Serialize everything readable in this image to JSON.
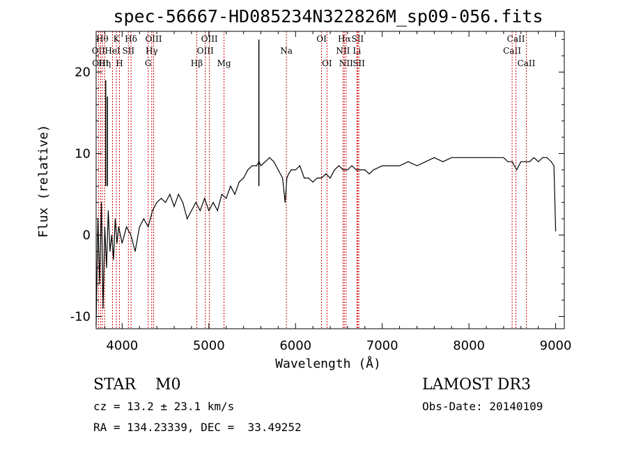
{
  "chart_data": {
    "type": "line",
    "title": "spec-56667-HD085234N322826M_sp09-056.fits",
    "xlabel": "Wavelength (Å)",
    "ylabel": "Flux (relative)",
    "xlim": [
      3700,
      9100
    ],
    "ylim": [
      -11.5,
      25
    ],
    "xticks": [
      4000,
      5000,
      6000,
      7000,
      8000,
      9000
    ],
    "yticks": [
      -10,
      0,
      10,
      20
    ],
    "grid": false,
    "series": [
      {
        "x": [
          3700,
          3720,
          3740,
          3760,
          3780,
          3800,
          3820,
          3840,
          3860,
          3880,
          3900,
          3920,
          3940,
          3960,
          3980,
          4000,
          4050,
          4100,
          4150,
          4200,
          4250,
          4300,
          4350,
          4400,
          4450,
          4500,
          4550,
          4600,
          4650,
          4700,
          4750,
          4800,
          4850,
          4900,
          4950,
          5000,
          5050,
          5100,
          5150,
          5200,
          5250,
          5300,
          5350,
          5400,
          5450,
          5500,
          5550,
          5580,
          5600,
          5650,
          5700,
          5750,
          5800,
          5850,
          5880,
          5900,
          5920,
          5950,
          6000,
          6050,
          6100,
          6150,
          6200,
          6250,
          6300,
          6350,
          6400,
          6450,
          6500,
          6550,
          6600,
          6650,
          6700,
          6750,
          6800,
          6850,
          6900,
          7000,
          7100,
          7200,
          7300,
          7400,
          7500,
          7600,
          7700,
          7800,
          7900,
          8000,
          8100,
          8200,
          8300,
          8400,
          8450,
          8500,
          8550,
          8600,
          8650,
          8700,
          8750,
          8800,
          8850,
          8900,
          8950,
          8980,
          9000
        ],
        "values": [
          -11,
          2,
          -6,
          4,
          -9,
          1,
          -4,
          3,
          -2,
          0,
          -3,
          2,
          -1,
          1,
          0,
          -1,
          1,
          0,
          -2,
          1,
          2,
          1,
          3,
          4,
          4.5,
          4,
          5,
          3.5,
          5,
          4,
          2,
          3,
          4,
          3,
          4.5,
          3,
          4,
          3,
          5,
          4.5,
          6,
          5,
          6.5,
          7,
          8,
          8.5,
          8.5,
          9,
          8.5,
          9,
          9.5,
          9,
          8,
          7,
          4,
          7,
          7.5,
          8,
          8,
          8.5,
          7,
          7,
          6.5,
          7,
          7,
          7.5,
          7,
          8,
          8.5,
          8,
          8,
          8.5,
          8,
          8,
          8,
          7.5,
          8,
          8.5,
          8.5,
          8.5,
          9,
          8.5,
          9,
          9.5,
          9,
          9.5,
          9.5,
          9.5,
          9.5,
          9.5,
          9.5,
          9.5,
          9,
          9,
          8,
          9,
          9,
          9,
          9.5,
          9,
          9.5,
          9.5,
          9,
          8.5,
          0.5
        ]
      }
    ],
    "spikes": [
      {
        "x": 3810,
        "y": 19
      },
      {
        "x": 3830,
        "y": 17
      },
      {
        "x": 5577,
        "y": 24
      }
    ],
    "line_markers": [
      {
        "x": 3727,
        "label": "OII",
        "row": 1
      },
      {
        "x": 3750,
        "label": "OIII",
        "row": 2
      },
      {
        "x": 3771,
        "label": "Hθ",
        "row": 0
      },
      {
        "x": 3798,
        "label": "Hη",
        "row": 2
      },
      {
        "x": 3889,
        "label": "HeI",
        "row": 1
      },
      {
        "x": 3934,
        "label": "K",
        "row": 0
      },
      {
        "x": 3969,
        "label": "H",
        "row": 2
      },
      {
        "x": 4072,
        "label": "SII",
        "row": 1
      },
      {
        "x": 4102,
        "label": "Hδ",
        "row": 0
      },
      {
        "x": 4300,
        "label": "G",
        "row": 2
      },
      {
        "x": 4341,
        "label": "Hγ",
        "row": 1
      },
      {
        "x": 4363,
        "label": "OIII",
        "row": 0
      },
      {
        "x": 4861,
        "label": "Hβ",
        "row": 2
      },
      {
        "x": 4959,
        "label": "OIII",
        "row": 1
      },
      {
        "x": 5007,
        "label": "OIII",
        "row": 0
      },
      {
        "x": 5175,
        "label": "Mg",
        "row": 2
      },
      {
        "x": 5894,
        "label": "Na",
        "row": 1
      },
      {
        "x": 6300,
        "label": "OI",
        "row": 0
      },
      {
        "x": 6363,
        "label": "OI",
        "row": 2
      },
      {
        "x": 6548,
        "label": "NII",
        "row": 1
      },
      {
        "x": 6563,
        "label": "Hα",
        "row": 0
      },
      {
        "x": 6583,
        "label": "NII",
        "row": 2
      },
      {
        "x": 6708,
        "label": "Li",
        "row": 1
      },
      {
        "x": 6716,
        "label": "SII",
        "row": 0
      },
      {
        "x": 6730,
        "label": "SII",
        "row": 2
      },
      {
        "x": 8498,
        "label": "CaII",
        "row": 1
      },
      {
        "x": 8542,
        "label": "CaII",
        "row": 0
      },
      {
        "x": 8662,
        "label": "CaII",
        "row": 2
      }
    ],
    "marker_color": "#cc0000"
  },
  "info": {
    "class_line": "STAR    M0",
    "survey": "LAMOST DR3",
    "cz": "cz = 13.2 ± 23.1 km/s",
    "obs_date": "Obs-Date: 20140109",
    "radec": "RA = 134.23339, DEC =  33.49252"
  }
}
